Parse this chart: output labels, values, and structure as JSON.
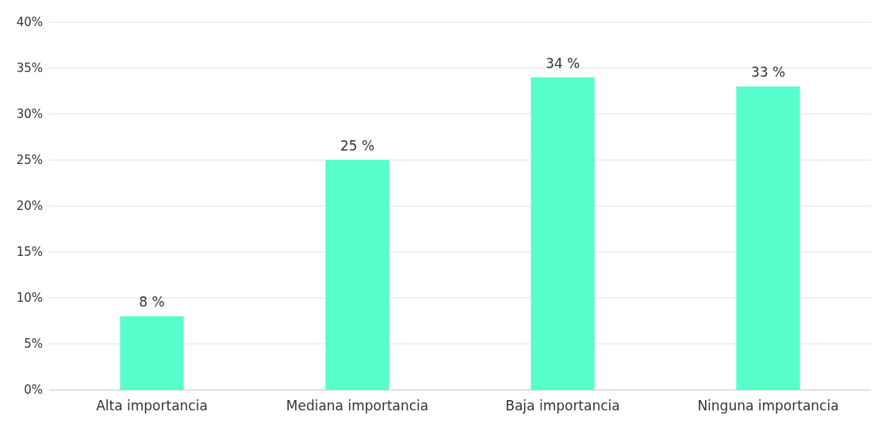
{
  "chart_data": {
    "type": "bar",
    "categories": [
      "Alta importancia",
      "Mediana importancia",
      "Baja importancia",
      "Ninguna importancia"
    ],
    "values": [
      8,
      25,
      34,
      33
    ],
    "value_labels": [
      "8 %",
      "25 %",
      "34 %",
      "33 %"
    ],
    "color": "#57fdca",
    "ylim": [
      0,
      40
    ],
    "yticks": [
      {
        "value": 0,
        "label": "0%"
      },
      {
        "value": 5,
        "label": "5%"
      },
      {
        "value": 10,
        "label": "10%"
      },
      {
        "value": 15,
        "label": "15%"
      },
      {
        "value": 20,
        "label": "20%"
      },
      {
        "value": 25,
        "label": "25%"
      },
      {
        "value": 30,
        "label": "30%"
      },
      {
        "value": 35,
        "label": "35%"
      },
      {
        "value": 40,
        "label": "40%"
      }
    ],
    "grid": "y"
  }
}
